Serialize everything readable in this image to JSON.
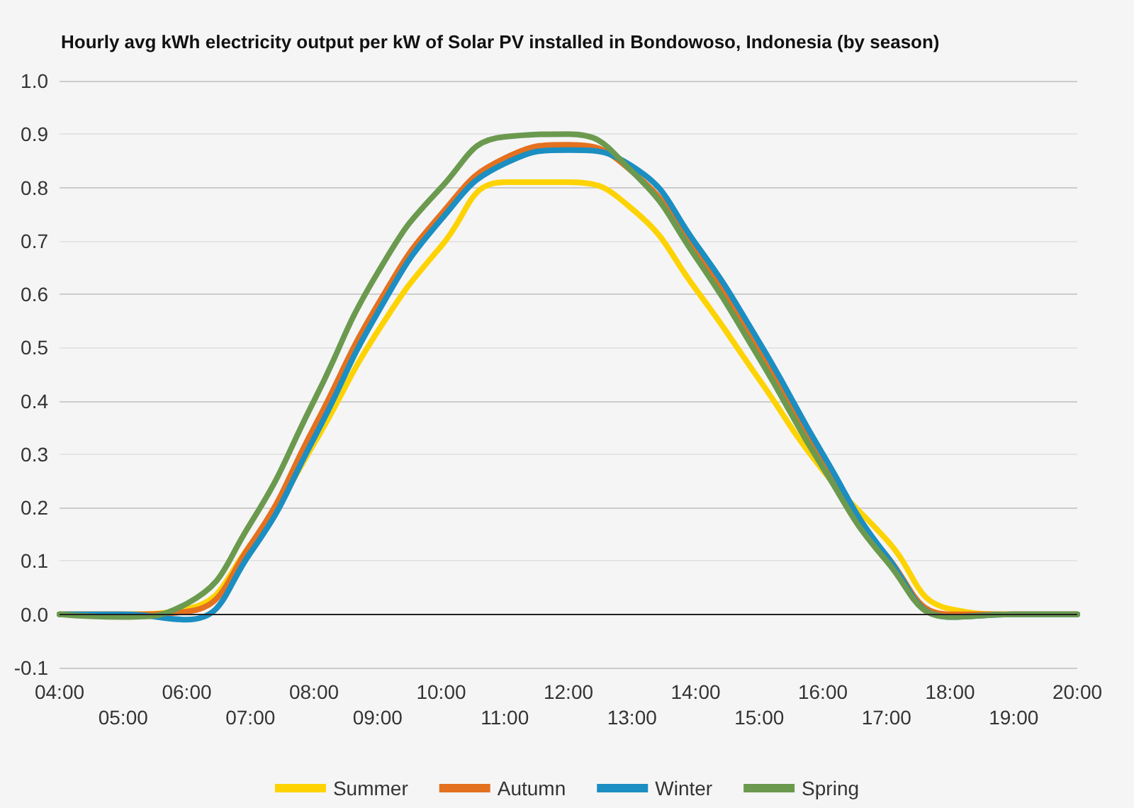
{
  "chart_data": {
    "type": "line",
    "title": "Hourly avg kWh electricity output per kW of Solar PV installed in Bondowoso, Indonesia (by season)",
    "categories": [
      "04:00",
      "05:00",
      "06:00",
      "07:00",
      "08:00",
      "09:00",
      "10:00",
      "11:00",
      "12:00",
      "13:00",
      "14:00",
      "15:00",
      "16:00",
      "17:00",
      "18:00",
      "19:00",
      "20:00"
    ],
    "series": [
      {
        "name": "Summer",
        "color": "#fdd303",
        "values": [
          0,
          0,
          0.01,
          0.13,
          0.32,
          0.53,
          0.69,
          0.81,
          0.81,
          0.76,
          0.61,
          0.44,
          0.27,
          0.14,
          0.01,
          0,
          0
        ]
      },
      {
        "name": "Autumn",
        "color": "#e4711f",
        "values": [
          0,
          0,
          0.005,
          0.13,
          0.35,
          0.58,
          0.75,
          0.855,
          0.88,
          0.83,
          0.68,
          0.49,
          0.285,
          0.11,
          0,
          0,
          0
        ]
      },
      {
        "name": "Winter",
        "color": "#1b8ec2",
        "values": [
          0,
          0,
          -0.01,
          0.115,
          0.33,
          0.565,
          0.74,
          0.845,
          0.87,
          0.84,
          0.695,
          0.51,
          0.3,
          0.11,
          -0.005,
          0,
          0
        ]
      },
      {
        "name": "Spring",
        "color": "#6b9a4f",
        "values": [
          0,
          -0.005,
          0.02,
          0.17,
          0.4,
          0.64,
          0.8,
          0.895,
          0.9,
          0.83,
          0.67,
          0.48,
          0.275,
          0.1,
          -0.005,
          0,
          0
        ]
      }
    ],
    "ylim": [
      -0.1,
      1.0
    ],
    "yticks": [
      -0.1,
      {
        "value": 0,
        "label": "0.0"
      },
      0.1,
      0.2,
      0.3,
      0.4,
      0.5,
      0.6,
      0.7,
      0.8,
      0.9,
      {
        "value": 1,
        "label": "1.0"
      }
    ],
    "grid": "y",
    "legend": "bottom",
    "marker": "none",
    "line_style": "solid",
    "ref_lines": [
      {
        "axis": "y",
        "value": 0,
        "color": "#222222"
      }
    ]
  }
}
